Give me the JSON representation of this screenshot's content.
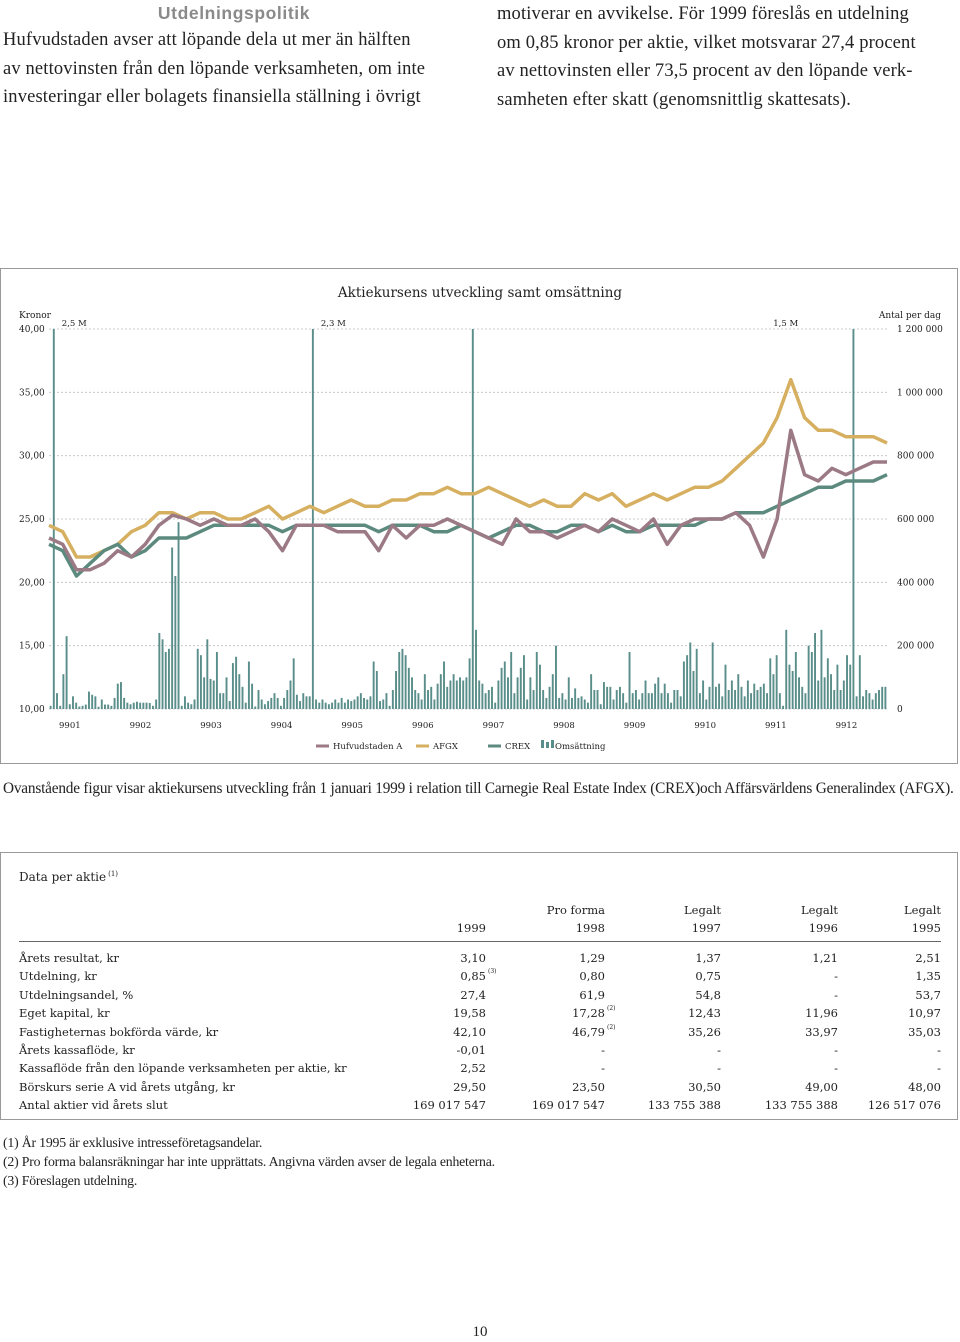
{
  "left_column": {
    "heading": "Utdelningspolitik",
    "lines": [
      "Hufvudstaden avser att löpande dela ut mer än hälften",
      "av nettovinsten från den löpande verksamheten, om inte",
      "investeringar eller bolagets finansiella ställning i övrigt"
    ]
  },
  "right_column": {
    "lines": [
      "motiverar en avvikelse. För 1999 föreslås en utdelning",
      "om 0,85 kronor per aktie, vilket motsvarar 27,4 procent",
      "av nettovinsten eller 73,5 procent av den löpande verk-",
      "samheten efter skatt (genomsnittlig skattesats)."
    ]
  },
  "chart_data": {
    "type": "line",
    "title": "Aktiekursens utveckling samt omsättning",
    "ylabel_left": "Kronor",
    "ylabel_right": "Antal per dag",
    "y_ticks_left": [
      "40,00",
      "35,00",
      "30,00",
      "25,00",
      "20,00",
      "15,00",
      "10,00"
    ],
    "y_ticks_right": [
      "1 200 000",
      "1 000 000",
      "800 000",
      "600 000",
      "400 000",
      "200 000",
      "0"
    ],
    "ylim_left": [
      10,
      40
    ],
    "ylim_right": [
      0,
      1200000
    ],
    "x_ticks": [
      "9901",
      "9902",
      "9903",
      "9904",
      "9905",
      "9906",
      "9907",
      "9908",
      "9909",
      "9910",
      "9911",
      "9912"
    ],
    "annotations": [
      "2,5 M",
      "2,3 M",
      "1,5 M"
    ],
    "legend": [
      "Hufvudstaden A",
      "AFGX",
      "CREX",
      "Omsättning"
    ],
    "legend_position": "bottom",
    "colors": {
      "hufvudstaden": "#9b7a85",
      "afgx": "#d6b060",
      "crex": "#5c8a7e",
      "volume": "#5a8e8a"
    },
    "series": [
      {
        "name": "Hufvudstaden A",
        "values": [
          23.5,
          23.0,
          21.0,
          21.0,
          21.5,
          22.5,
          22.0,
          23.0,
          24.5,
          25.3,
          25.0,
          24.5,
          25.0,
          24.5,
          24.5,
          25.0,
          24.0,
          22.5,
          24.5,
          24.5,
          24.5,
          24.0,
          24.0,
          24.0,
          22.5,
          24.5,
          23.5,
          24.5,
          24.5,
          25.0,
          24.5,
          24.0,
          23.5,
          23.0,
          25.0,
          24.0,
          24.0,
          23.5,
          24.0,
          24.5,
          24.0,
          25.0,
          24.5,
          24.0,
          25.0,
          23.0,
          24.5,
          25.0,
          25.0,
          25.0,
          25.5,
          24.5,
          22.0,
          25.0,
          32.0,
          28.5,
          28.0,
          29.0,
          28.5,
          29.0,
          29.5,
          29.5
        ]
      },
      {
        "name": "AFGX",
        "values": [
          24.5,
          24.0,
          22.0,
          22.0,
          22.5,
          23.0,
          24.0,
          24.5,
          25.5,
          25.5,
          25.0,
          25.5,
          25.5,
          25.0,
          25.0,
          25.5,
          26.0,
          25.0,
          25.5,
          26.0,
          25.5,
          26.0,
          26.5,
          26.0,
          26.0,
          26.5,
          26.5,
          27.0,
          27.0,
          27.5,
          27.0,
          27.0,
          27.5,
          27.0,
          26.5,
          26.0,
          26.5,
          26.0,
          26.0,
          27.0,
          26.5,
          27.0,
          26.0,
          26.5,
          27.0,
          26.5,
          27.0,
          27.5,
          27.5,
          28.0,
          29.0,
          30.0,
          31.0,
          33.0,
          36.0,
          33.0,
          32.0,
          32.0,
          31.5,
          31.5,
          31.5,
          31.0
        ]
      },
      {
        "name": "CREX",
        "values": [
          23.0,
          22.5,
          20.5,
          21.5,
          22.5,
          23.0,
          22.0,
          22.5,
          23.5,
          23.5,
          23.5,
          24.0,
          24.5,
          24.5,
          24.5,
          24.5,
          24.5,
          24.0,
          24.5,
          24.5,
          24.5,
          24.5,
          24.5,
          24.5,
          24.0,
          24.5,
          24.5,
          24.5,
          24.0,
          24.0,
          24.5,
          24.0,
          23.5,
          24.0,
          24.5,
          24.5,
          24.0,
          24.0,
          24.5,
          24.5,
          24.0,
          24.5,
          24.0,
          24.0,
          24.5,
          24.5,
          24.5,
          24.5,
          25.0,
          25.0,
          25.5,
          25.5,
          25.5,
          26.0,
          26.5,
          27.0,
          27.5,
          27.5,
          28.0,
          28.0,
          28.0,
          28.5
        ]
      },
      {
        "name": "Omsättning",
        "values": [
          10000,
          1200000,
          50000,
          10000,
          110000,
          230000,
          15000,
          40000,
          20000,
          8000,
          10000,
          14000,
          55000,
          45000,
          40000,
          7000,
          30000,
          14000,
          14000,
          10000,
          35000,
          80000,
          85000,
          35000,
          20000,
          15000,
          20000,
          23000,
          20000,
          20000,
          20000,
          19000,
          10000,
          30000,
          240000,
          220000,
          180000,
          190000,
          510000,
          420000,
          590000,
          10000,
          40000,
          20000,
          15000,
          30000,
          190000,
          170000,
          100000,
          220000,
          95000,
          90000,
          180000,
          50000,
          50000,
          100000,
          25000,
          145000,
          165000,
          110000,
          70000,
          20000,
          150000,
          80000,
          8000,
          60000,
          30000,
          15000,
          25000,
          35000,
          50000,
          35000,
          10000,
          35000,
          60000,
          90000,
          160000,
          45000,
          25000,
          50000,
          40000,
          40000,
          1200000,
          30000,
          20000,
          30000,
          20000,
          15000,
          20000,
          30000,
          20000,
          35000,
          20000,
          30000,
          25000,
          30000,
          40000,
          50000,
          35000,
          30000,
          40000,
          150000,
          120000,
          25000,
          30000,
          50000,
          10000,
          60000,
          120000,
          180000,
          190000,
          170000,
          130000,
          100000,
          60000,
          50000,
          30000,
          110000,
          60000,
          70000,
          30000,
          80000,
          110000,
          150000,
          70000,
          90000,
          110000,
          90000,
          100000,
          90000,
          100000,
          160000,
          1200000,
          250000,
          90000,
          80000,
          50000,
          60000,
          70000,
          20000,
          90000,
          130000,
          150000,
          100000,
          180000,
          50000,
          100000,
          130000,
          170000,
          30000,
          100000,
          60000,
          180000,
          140000,
          60000,
          35000,
          70000,
          110000,
          200000,
          35000,
          50000,
          30000,
          100000,
          35000,
          65000,
          35000,
          40000,
          30000,
          20000,
          110000,
          60000,
          60000,
          15000,
          85000,
          70000,
          70000,
          30000,
          60000,
          70000,
          50000,
          20000,
          180000,
          50000,
          60000,
          30000,
          50000,
          90000,
          50000,
          50000,
          80000,
          100000,
          50000,
          80000,
          50000,
          20000,
          60000,
          60000,
          40000,
          150000,
          170000,
          210000,
          120000,
          190000,
          50000,
          90000,
          30000,
          70000,
          210000,
          70000,
          80000,
          40000,
          140000,
          60000,
          90000,
          60000,
          110000,
          70000,
          40000,
          90000,
          50000,
          80000,
          60000,
          70000,
          80000,
          50000,
          160000,
          110000,
          170000,
          50000,
          10000,
          250000,
          140000,
          120000,
          180000,
          100000,
          70000,
          50000,
          200000,
          180000,
          240000,
          90000,
          250000,
          100000,
          160000,
          110000,
          60000,
          140000,
          60000,
          90000,
          170000,
          140000,
          1200000,
          40000,
          170000,
          40000,
          60000,
          50000,
          30000,
          50000,
          60000,
          70000,
          70000
        ]
      }
    ]
  },
  "caption": "Ovanstående figur visar aktiekursens utveckling från 1 januari 1999 i relation till Carnegie Real Estate Index (CREX)och Affärsvärldens Generalindex (AFGX).",
  "table": {
    "title": "Data per aktie",
    "title_note": "(1)",
    "header_top": [
      "",
      "Pro forma",
      "Legalt",
      "Legalt",
      "Legalt"
    ],
    "header_years": [
      "1999",
      "1998",
      "1997",
      "1996",
      "1995"
    ],
    "rows": [
      {
        "label": "Årets resultat, kr",
        "values": [
          "3,10",
          "1,29",
          "1,37",
          "1,21",
          "2,51"
        ],
        "notes": [
          "",
          "",
          "",
          "",
          ""
        ]
      },
      {
        "label": "Utdelning, kr",
        "values": [
          "0,85",
          "0,80",
          "0,75",
          "-",
          "1,35"
        ],
        "notes": [
          "(3)",
          "",
          "",
          "",
          ""
        ]
      },
      {
        "label": "Utdelningsandel, %",
        "values": [
          "27,4",
          "61,9",
          "54,8",
          "-",
          "53,7"
        ],
        "notes": [
          "",
          "",
          "",
          "",
          ""
        ]
      },
      {
        "label": "Eget kapital, kr",
        "values": [
          "19,58",
          "17,28",
          "12,43",
          "11,96",
          "10,97"
        ],
        "notes": [
          "",
          "(2)",
          "",
          "",
          ""
        ]
      },
      {
        "label": "Fastigheternas bokförda värde, kr",
        "values": [
          "42,10",
          "46,79",
          "35,26",
          "33,97",
          "35,03"
        ],
        "notes": [
          "",
          "(2)",
          "",
          "",
          ""
        ]
      },
      {
        "label": "Årets kassaflöde, kr",
        "values": [
          "-0,01",
          "-",
          "-",
          "-",
          "-"
        ],
        "notes": [
          "",
          "",
          "",
          "",
          ""
        ]
      },
      {
        "label": "Kassaflöde från den löpande verksamheten per aktie, kr",
        "values": [
          "2,52",
          "-",
          "-",
          "-",
          "-"
        ],
        "notes": [
          "",
          "",
          "",
          "",
          ""
        ]
      },
      {
        "label": "Börskurs serie A vid årets utgång, kr",
        "values": [
          "29,50",
          "23,50",
          "30,50",
          "49,00",
          "48,00"
        ],
        "notes": [
          "",
          "",
          "",
          "",
          ""
        ]
      },
      {
        "label": "Antal aktier vid årets slut",
        "values": [
          "169 017 547",
          "169 017 547",
          "133 755 388",
          "133 755 388",
          "126 517 076"
        ],
        "notes": [
          "",
          "",
          "",
          "",
          ""
        ]
      }
    ]
  },
  "footnotes": [
    "(1) År 1995 är exklusive intresseföretagsandelar.",
    "(2) Pro forma balansräkningar har inte upprättats. Angivna värden avser de legala enheterna.",
    "(3) Föreslagen utdelning."
  ],
  "page_number": "10"
}
